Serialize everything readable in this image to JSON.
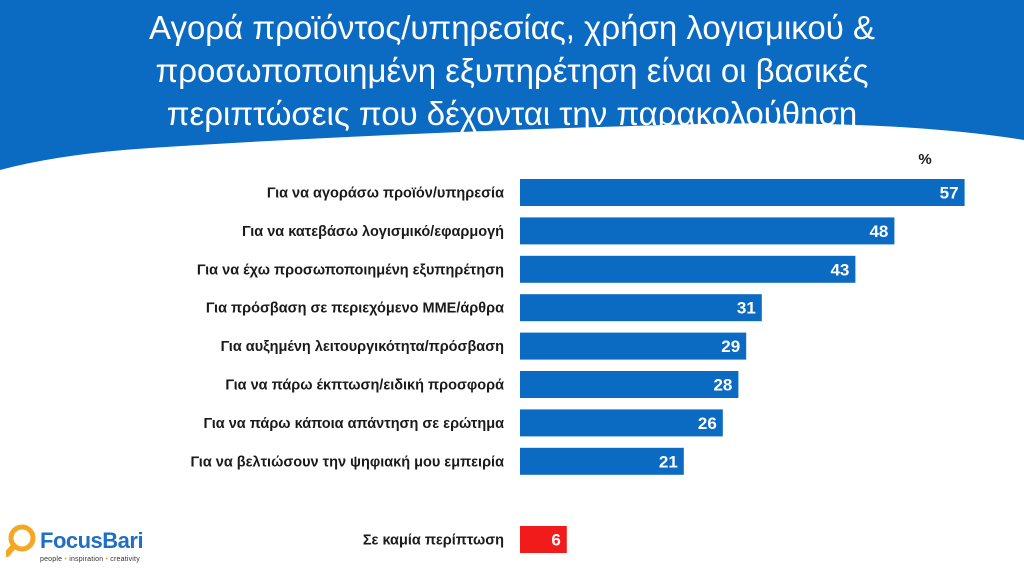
{
  "header": {
    "title": "Αγορά προϊόντος/υπηρεσίας, χρήση λογισμικού &\nπροσωποποιημένη εξυπηρέτηση είναι οι βασικές\nπεριπτώσεις που δέχονται την παρακολούθηση",
    "background_color": "#0b6bc2"
  },
  "chart_data": {
    "type": "bar",
    "orientation": "horizontal",
    "unit_label": "%",
    "categories": [
      "Για να αγοράσω προϊόν/υπηρεσία",
      "Για να κατεβάσω λογισμικό/εφαρμογή",
      "Για να έχω προσωποποιημένη εξυπηρέτηση",
      "Για πρόσβαση σε περιεχόμενο ΜΜΕ/άρθρα",
      "Για αυξημένη λειτουργικότητα/πρόσβαση",
      "Για να πάρω έκπτωση/ειδική προσφορά",
      "Για να πάρω κάποια απάντηση σε ερώτημα",
      "Για να βελτιώσουν την ψηφιακή μου εμπειρία"
    ],
    "values": [
      57,
      48,
      43,
      31,
      29,
      28,
      26,
      21
    ],
    "bar_color": "#0b6bc2",
    "separate_item": {
      "label": "Σε καμία περίπτωση",
      "value": 6,
      "color": "#f21b1b"
    },
    "data_labels": true,
    "grid": false,
    "legend": "none"
  },
  "logo": {
    "name": "FocusBari",
    "tagline_parts": [
      "people",
      "inspiration",
      "creativity"
    ],
    "tagline_separator": "•",
    "accent_color": "#f5a623",
    "brand_color": "#1f6fc4"
  }
}
